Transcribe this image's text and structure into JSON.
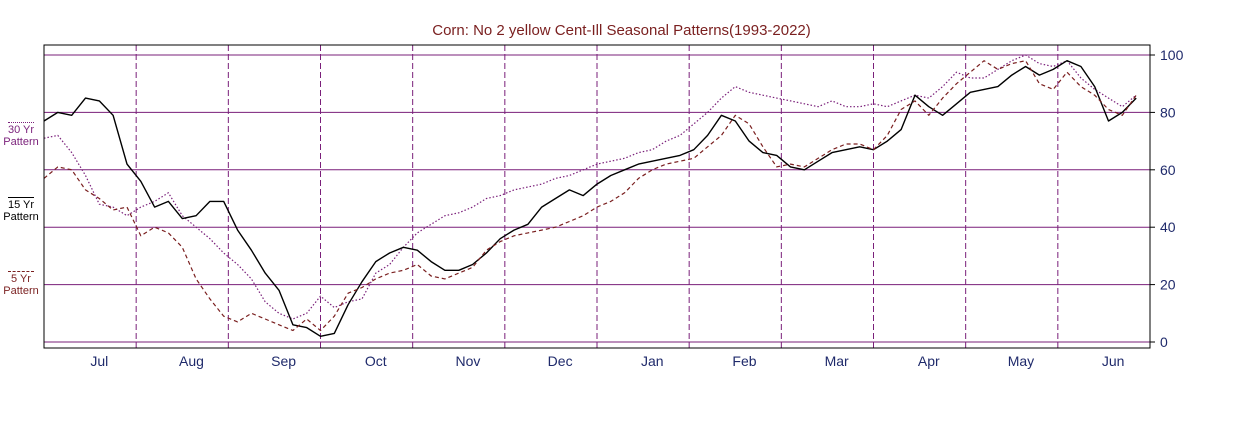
{
  "chart_data": {
    "type": "line",
    "title": "Corn: No 2 yellow Cent-Ill Seasonal Patterns(1993-2022)",
    "xlabel": "",
    "ylabel": "",
    "categories": [
      "Jul",
      "Aug",
      "Sep",
      "Oct",
      "Nov",
      "Dec",
      "Jan",
      "Feb",
      "Mar",
      "Apr",
      "May",
      "Jun"
    ],
    "y_ticks": [
      "0",
      "20",
      "40",
      "60",
      "80",
      "100"
    ],
    "ylim": [
      0,
      100
    ],
    "xlim": [
      0,
      12
    ],
    "grid": true,
    "y_axis_side": "right",
    "legend_position": "left",
    "series": [
      {
        "name_lines": [
          "30 Yr",
          "Pattern"
        ],
        "color": "#7a1f7a",
        "style": "dotted",
        "x": [
          0.0,
          0.15,
          0.3,
          0.45,
          0.6,
          0.75,
          0.9,
          1.05,
          1.2,
          1.35,
          1.5,
          1.65,
          1.8,
          1.95,
          2.1,
          2.25,
          2.4,
          2.55,
          2.7,
          2.85,
          3.0,
          3.15,
          3.3,
          3.45,
          3.6,
          3.75,
          3.9,
          4.05,
          4.2,
          4.35,
          4.5,
          4.65,
          4.8,
          4.95,
          5.1,
          5.25,
          5.4,
          5.55,
          5.7,
          5.85,
          6.0,
          6.15,
          6.3,
          6.45,
          6.6,
          6.75,
          6.9,
          7.05,
          7.2,
          7.35,
          7.5,
          7.65,
          7.8,
          7.95,
          8.1,
          8.25,
          8.4,
          8.55,
          8.7,
          8.85,
          9.0,
          9.15,
          9.3,
          9.45,
          9.6,
          9.75,
          9.9,
          10.05,
          10.2,
          10.35,
          10.5,
          10.65,
          10.8,
          10.95,
          11.1,
          11.25,
          11.4,
          11.55,
          11.7,
          11.85
        ],
        "values": [
          71,
          72,
          66,
          58,
          48,
          47,
          44,
          47,
          49,
          52,
          44,
          40,
          36,
          31,
          27,
          22,
          14,
          10,
          8,
          10,
          16,
          12,
          14,
          15,
          24,
          27,
          33,
          38,
          41,
          44,
          45,
          47,
          50,
          51,
          53,
          54,
          55,
          57,
          58,
          60,
          62,
          63,
          64,
          66,
          67,
          70,
          72,
          76,
          80,
          85,
          89,
          87,
          86,
          85,
          84,
          83,
          82,
          84,
          82,
          82,
          83,
          82,
          84,
          86,
          85,
          89,
          94,
          92,
          92,
          95,
          98,
          100,
          97,
          96,
          98,
          92,
          88,
          85,
          82,
          86
        ]
      },
      {
        "name_lines": [
          "15 Yr",
          "Pattern"
        ],
        "color": "#000000",
        "style": "solid",
        "x": [
          0.0,
          0.15,
          0.3,
          0.45,
          0.6,
          0.75,
          0.9,
          1.05,
          1.2,
          1.35,
          1.5,
          1.65,
          1.8,
          1.95,
          2.1,
          2.25,
          2.4,
          2.55,
          2.7,
          2.85,
          3.0,
          3.15,
          3.3,
          3.45,
          3.6,
          3.75,
          3.9,
          4.05,
          4.2,
          4.35,
          4.5,
          4.65,
          4.8,
          4.95,
          5.1,
          5.25,
          5.4,
          5.55,
          5.7,
          5.85,
          6.0,
          6.15,
          6.3,
          6.45,
          6.6,
          6.75,
          6.9,
          7.05,
          7.2,
          7.35,
          7.5,
          7.65,
          7.8,
          7.95,
          8.1,
          8.25,
          8.4,
          8.55,
          8.7,
          8.85,
          9.0,
          9.15,
          9.3,
          9.45,
          9.6,
          9.75,
          9.9,
          10.05,
          10.2,
          10.35,
          10.5,
          10.65,
          10.8,
          10.95,
          11.1,
          11.25,
          11.4,
          11.55,
          11.7,
          11.85
        ],
        "values": [
          77,
          80,
          79,
          85,
          84,
          79,
          62,
          56,
          47,
          49,
          43,
          44,
          49,
          49,
          39,
          32,
          24,
          18,
          6,
          5,
          2,
          3,
          13,
          21,
          28,
          31,
          33,
          32,
          28,
          25,
          25,
          27,
          31,
          36,
          39,
          41,
          47,
          50,
          53,
          51,
          55,
          58,
          60,
          62,
          63,
          64,
          65,
          67,
          72,
          79,
          77,
          70,
          66,
          65,
          61,
          60,
          63,
          66,
          67,
          68,
          67,
          70,
          74,
          86,
          82,
          79,
          83,
          87,
          88,
          89,
          93,
          96,
          93,
          95,
          98,
          96,
          89,
          77,
          80,
          85
        ]
      },
      {
        "name_lines": [
          "5 Yr",
          "Pattern"
        ],
        "color": "#7a1f1f",
        "style": "dashed",
        "x": [
          0.0,
          0.15,
          0.3,
          0.45,
          0.6,
          0.75,
          0.9,
          1.05,
          1.2,
          1.35,
          1.5,
          1.65,
          1.8,
          1.95,
          2.1,
          2.25,
          2.4,
          2.55,
          2.7,
          2.85,
          3.0,
          3.15,
          3.3,
          3.45,
          3.6,
          3.75,
          3.9,
          4.05,
          4.2,
          4.35,
          4.5,
          4.65,
          4.8,
          4.95,
          5.1,
          5.25,
          5.4,
          5.55,
          5.7,
          5.85,
          6.0,
          6.15,
          6.3,
          6.45,
          6.6,
          6.75,
          6.9,
          7.05,
          7.2,
          7.35,
          7.5,
          7.65,
          7.8,
          7.95,
          8.1,
          8.25,
          8.4,
          8.55,
          8.7,
          8.85,
          9.0,
          9.15,
          9.3,
          9.45,
          9.6,
          9.75,
          9.9,
          10.05,
          10.2,
          10.35,
          10.5,
          10.65,
          10.8,
          10.95,
          11.1,
          11.25,
          11.4,
          11.55,
          11.7,
          11.85
        ],
        "values": [
          57,
          61,
          60,
          53,
          50,
          46,
          47,
          37,
          40,
          38,
          33,
          22,
          15,
          9,
          7,
          10,
          8,
          6,
          4,
          8,
          4,
          9,
          17,
          19,
          22,
          24,
          25,
          27,
          23,
          22,
          24,
          26,
          32,
          35,
          37,
          38,
          39,
          40,
          42,
          44,
          47,
          49,
          52,
          57,
          60,
          62,
          63,
          64,
          68,
          72,
          79,
          76,
          68,
          61,
          62,
          61,
          64,
          67,
          69,
          69,
          67,
          72,
          81,
          84,
          79,
          85,
          90,
          94,
          98,
          95,
          97,
          98,
          90,
          88,
          94,
          89,
          86,
          81,
          79,
          86
        ]
      }
    ]
  }
}
